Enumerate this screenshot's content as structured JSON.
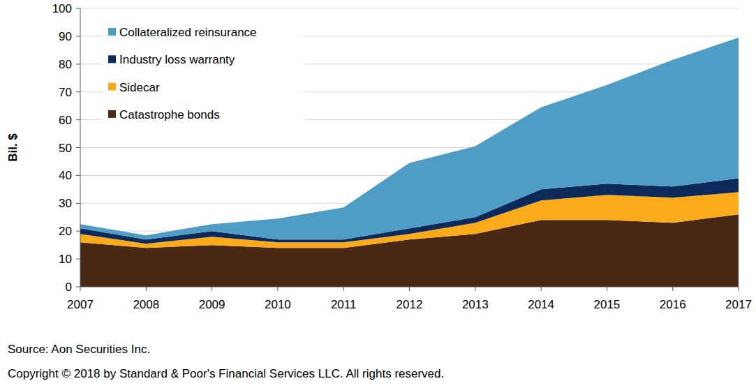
{
  "chart_data": {
    "type": "area",
    "stacked": true,
    "y_label": "Bil. $",
    "source": "Source: Aon Securities Inc.",
    "copyright": "Copyright © 2018 by Standard & Poor's Financial Services LLC. All rights reserved.",
    "x": [
      2007,
      2008,
      2009,
      2010,
      2011,
      2012,
      2013,
      2014,
      2015,
      2016,
      2017
    ],
    "xlim": [
      2007,
      2017
    ],
    "xticks": [
      2007,
      2008,
      2009,
      2010,
      2011,
      2012,
      2013,
      2014,
      2015,
      2016,
      2017
    ],
    "ylim": [
      0,
      100
    ],
    "yticks": [
      0,
      10,
      20,
      30,
      40,
      50,
      60,
      70,
      80,
      90,
      100
    ],
    "grid": true,
    "legend": "top-left",
    "series": [
      {
        "name": "Catastrophe bonds",
        "color": "#4a2816",
        "values": [
          16,
          14,
          15,
          14,
          14,
          17,
          19,
          24,
          24,
          23,
          26
        ]
      },
      {
        "name": "Sidecar",
        "color": "#fbaa1a",
        "values": [
          3,
          1.5,
          3,
          2,
          2,
          2,
          4,
          7,
          9,
          9,
          8
        ]
      },
      {
        "name": "Industry loss warranty",
        "color": "#0b2a5b",
        "values": [
          2,
          1.5,
          2,
          1,
          1,
          2,
          2,
          4,
          4,
          4,
          5
        ]
      },
      {
        "name": "Collateralized reinsurance",
        "color": "#4f9cc4",
        "values": [
          1.5,
          1.5,
          2.5,
          7.5,
          11.5,
          23.5,
          25.5,
          29.5,
          35.5,
          45.5,
          50.5
        ]
      }
    ]
  }
}
